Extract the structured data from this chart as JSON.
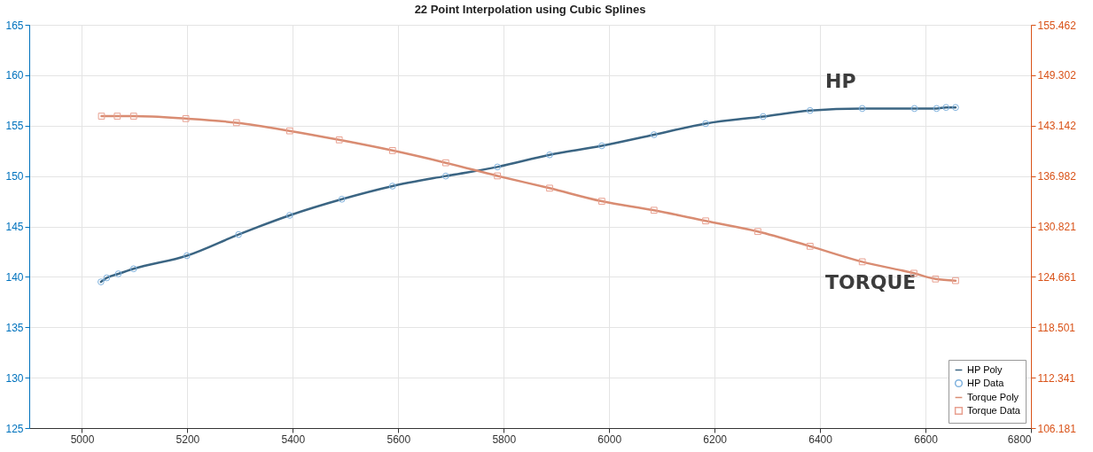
{
  "chart_data": {
    "type": "line",
    "title": "22 Point Interpolation using Cubic Splines",
    "xlim": [
      4900,
      6800
    ],
    "xticks": [
      5000,
      5200,
      5400,
      5600,
      5800,
      6000,
      6200,
      6400,
      6600,
      6800
    ],
    "ylim": [
      125,
      165
    ],
    "yticks": [
      125,
      130,
      135,
      140,
      145,
      150,
      155,
      160,
      165
    ],
    "y2lim": [
      106.181,
      155.462
    ],
    "y2ticks": [
      106.181,
      112.341,
      118.501,
      124.661,
      130.821,
      136.982,
      143.142,
      149.302,
      155.462
    ],
    "grid": true,
    "legend": "bottom right",
    "line_style": "solid",
    "annotations": [
      "HP",
      "TORQUE"
    ],
    "series": [
      {
        "name": "HP Poly",
        "marker": "none",
        "color": "#3b6583",
        "x": [
          5036,
          5047,
          5069,
          5098,
          5199,
          5297,
          5394,
          5493,
          5589,
          5690,
          5788,
          5887,
          5986,
          6085,
          6183,
          6292,
          6381,
          6480,
          6579,
          6621,
          6639,
          6657
        ],
        "values": [
          139.5,
          139.9,
          140.3,
          140.8,
          142.1,
          144.2,
          146.1,
          147.7,
          149.0,
          150.0,
          150.9,
          152.1,
          153.0,
          154.1,
          155.2,
          155.9,
          156.5,
          156.7,
          156.7,
          156.7,
          156.8,
          156.8
        ]
      },
      {
        "name": "HP Data",
        "type": "scatter",
        "marker": "circle",
        "color": "#7fb2de",
        "x": [
          5036,
          5047,
          5069,
          5098,
          5199,
          5297,
          5394,
          5493,
          5589,
          5690,
          5788,
          5887,
          5986,
          6085,
          6183,
          6292,
          6381,
          6480,
          6579,
          6621,
          6639,
          6657
        ],
        "values": [
          139.5,
          139.9,
          140.3,
          140.8,
          142.1,
          144.2,
          146.1,
          147.7,
          149.0,
          150.0,
          150.9,
          152.1,
          153.0,
          154.1,
          155.2,
          155.9,
          156.5,
          156.7,
          156.7,
          156.7,
          156.8,
          156.8
        ]
      },
      {
        "name": "Torque Poly",
        "marker": "none",
        "axis": "y2",
        "color": "#d98c72",
        "x": [
          5037,
          5067,
          5098,
          5197,
          5293,
          5394,
          5488,
          5589,
          5690,
          5788,
          5887,
          5986,
          6085,
          6183,
          6282,
          6381,
          6480,
          6578,
          6619,
          6657
        ],
        "values": [
          144.3,
          144.3,
          144.3,
          144.0,
          143.5,
          142.5,
          141.4,
          140.1,
          138.6,
          137.0,
          135.5,
          133.9,
          132.8,
          131.5,
          130.2,
          128.4,
          126.5,
          125.1,
          124.4,
          124.2
        ]
      },
      {
        "name": "Torque Data",
        "type": "scatter",
        "marker": "square",
        "axis": "y2",
        "color": "#e8a090",
        "x": [
          5037,
          5067,
          5098,
          5197,
          5293,
          5394,
          5488,
          5589,
          5690,
          5788,
          5887,
          5986,
          6085,
          6183,
          6282,
          6381,
          6480,
          6578,
          6619,
          6657
        ],
        "values": [
          144.3,
          144.3,
          144.3,
          144.0,
          143.5,
          142.5,
          141.4,
          140.1,
          138.6,
          137.0,
          135.5,
          133.9,
          132.8,
          131.5,
          130.2,
          128.4,
          126.5,
          125.1,
          124.4,
          124.2
        ]
      }
    ]
  }
}
